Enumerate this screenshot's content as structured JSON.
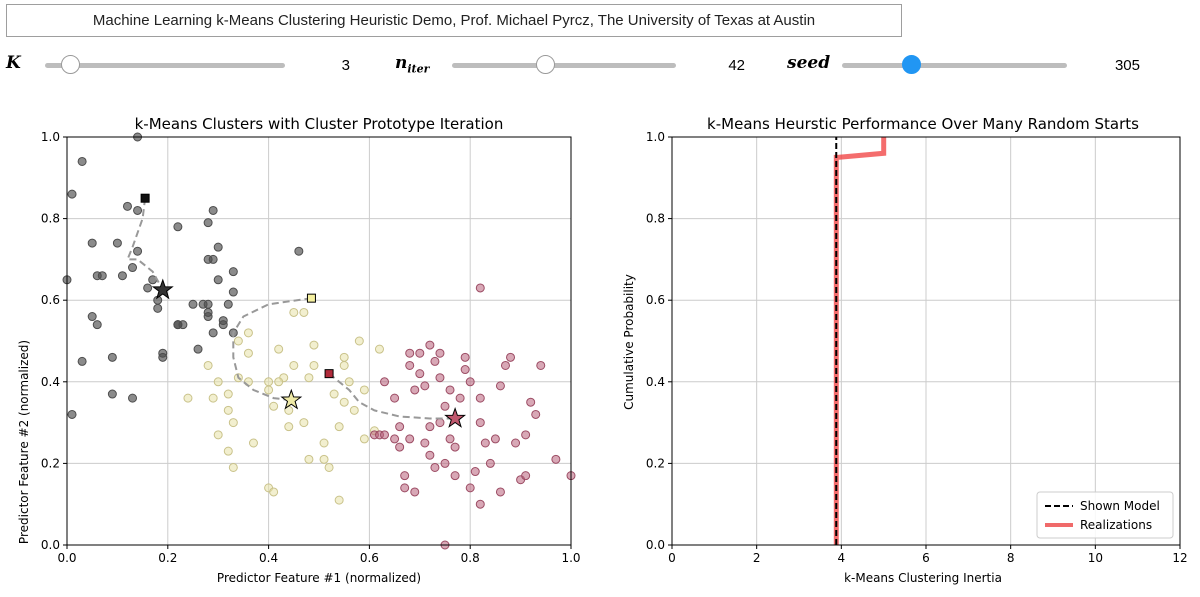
{
  "header": {
    "title": "Machine Learning k-Means Clustering Heuristic Demo, Prof. Michael Pyrcz, The University of Texas at Austin"
  },
  "controls": [
    {
      "label": "K",
      "sub": "",
      "value": "3",
      "min": 1,
      "max": 20,
      "current": 3
    },
    {
      "label": "n",
      "sub": "iter",
      "value": "42",
      "min": 1,
      "max": 100,
      "current": 42
    },
    {
      "label": "seed",
      "sub": "",
      "value": "305",
      "min": 0,
      "max": 1000,
      "current": 305
    }
  ],
  "colors": {
    "cluster_0": "#4d4d4d",
    "cluster_1": "#e8e2a8",
    "cluster_2": "#b8607a",
    "realizations": "#f03c3c",
    "slider_thumb_active": "#2196f3",
    "grid": "#cccccc"
  },
  "chart_data": [
    {
      "type": "scatter",
      "title": "k-Means Clusters with Cluster Prototype Iteration",
      "xlabel": "Predictor Feature #1 (normalized)",
      "ylabel": "Predictor Feature #2 (normalized)",
      "xlim": [
        0,
        1
      ],
      "ylim": [
        0,
        1
      ],
      "xticks": [
        "0.0",
        "0.2",
        "0.4",
        "0.6",
        "0.8",
        "1.0"
      ],
      "yticks": [
        "0.0",
        "0.2",
        "0.4",
        "0.6",
        "0.8",
        "1.0"
      ],
      "grid": true,
      "series": [
        {
          "cluster": 0,
          "points": [
            [
              0.14,
              1.0
            ],
            [
              0.03,
              0.94
            ],
            [
              0.01,
              0.86
            ],
            [
              0.05,
              0.74
            ],
            [
              0.1,
              0.74
            ],
            [
              0.12,
              0.83
            ],
            [
              0.14,
              0.82
            ],
            [
              0.14,
              0.72
            ],
            [
              0.13,
              0.68
            ],
            [
              0.11,
              0.66
            ],
            [
              0.07,
              0.66
            ],
            [
              0.06,
              0.66
            ],
            [
              0.0,
              0.65
            ],
            [
              0.05,
              0.56
            ],
            [
              0.06,
              0.54
            ],
            [
              0.03,
              0.45
            ],
            [
              0.09,
              0.46
            ],
            [
              0.18,
              0.6
            ],
            [
              0.18,
              0.58
            ],
            [
              0.19,
              0.47
            ],
            [
              0.19,
              0.46
            ],
            [
              0.22,
              0.54
            ],
            [
              0.22,
              0.54
            ],
            [
              0.25,
              0.59
            ],
            [
              0.27,
              0.59
            ],
            [
              0.28,
              0.59
            ],
            [
              0.28,
              0.57
            ],
            [
              0.28,
              0.56
            ],
            [
              0.29,
              0.52
            ],
            [
              0.26,
              0.48
            ],
            [
              0.31,
              0.55
            ],
            [
              0.31,
              0.54
            ],
            [
              0.32,
              0.59
            ],
            [
              0.33,
              0.62
            ],
            [
              0.33,
              0.67
            ],
            [
              0.3,
              0.73
            ],
            [
              0.28,
              0.7
            ],
            [
              0.29,
              0.7
            ],
            [
              0.3,
              0.65
            ],
            [
              0.28,
              0.79
            ],
            [
              0.29,
              0.82
            ],
            [
              0.22,
              0.78
            ],
            [
              0.46,
              0.72
            ],
            [
              0.09,
              0.37
            ],
            [
              0.13,
              0.36
            ],
            [
              0.01,
              0.32
            ],
            [
              0.16,
              0.63
            ],
            [
              0.17,
              0.65
            ],
            [
              0.23,
              0.54
            ],
            [
              0.33,
              0.52
            ]
          ]
        },
        {
          "cluster": 1,
          "points": [
            [
              0.28,
              0.44
            ],
            [
              0.29,
              0.36
            ],
            [
              0.24,
              0.36
            ],
            [
              0.3,
              0.27
            ],
            [
              0.32,
              0.23
            ],
            [
              0.32,
              0.37
            ],
            [
              0.33,
              0.3
            ],
            [
              0.33,
              0.19
            ],
            [
              0.36,
              0.4
            ],
            [
              0.37,
              0.25
            ],
            [
              0.36,
              0.52
            ],
            [
              0.36,
              0.47
            ],
            [
              0.34,
              0.5
            ],
            [
              0.34,
              0.41
            ],
            [
              0.3,
              0.4
            ],
            [
              0.32,
              0.33
            ],
            [
              0.4,
              0.4
            ],
            [
              0.4,
              0.38
            ],
            [
              0.4,
              0.14
            ],
            [
              0.41,
              0.13
            ],
            [
              0.41,
              0.34
            ],
            [
              0.42,
              0.48
            ],
            [
              0.43,
              0.41
            ],
            [
              0.44,
              0.29
            ],
            [
              0.45,
              0.44
            ],
            [
              0.45,
              0.57
            ],
            [
              0.47,
              0.57
            ],
            [
              0.47,
              0.3
            ],
            [
              0.48,
              0.21
            ],
            [
              0.48,
              0.41
            ],
            [
              0.49,
              0.44
            ],
            [
              0.49,
              0.49
            ],
            [
              0.51,
              0.21
            ],
            [
              0.51,
              0.25
            ],
            [
              0.52,
              0.19
            ],
            [
              0.53,
              0.37
            ],
            [
              0.54,
              0.29
            ],
            [
              0.54,
              0.11
            ],
            [
              0.55,
              0.35
            ],
            [
              0.55,
              0.44
            ],
            [
              0.55,
              0.46
            ],
            [
              0.56,
              0.4
            ],
            [
              0.57,
              0.33
            ],
            [
              0.58,
              0.5
            ],
            [
              0.59,
              0.26
            ],
            [
              0.59,
              0.38
            ],
            [
              0.61,
              0.28
            ],
            [
              0.62,
              0.48
            ],
            [
              0.42,
              0.4
            ],
            [
              0.44,
              0.33
            ]
          ]
        },
        {
          "cluster": 2,
          "points": [
            [
              0.61,
              0.27
            ],
            [
              0.62,
              0.27
            ],
            [
              0.63,
              0.27
            ],
            [
              0.63,
              0.4
            ],
            [
              0.65,
              0.36
            ],
            [
              0.65,
              0.26
            ],
            [
              0.66,
              0.24
            ],
            [
              0.66,
              0.29
            ],
            [
              0.67,
              0.17
            ],
            [
              0.68,
              0.26
            ],
            [
              0.68,
              0.44
            ],
            [
              0.68,
              0.47
            ],
            [
              0.69,
              0.38
            ],
            [
              0.7,
              0.47
            ],
            [
              0.7,
              0.42
            ],
            [
              0.71,
              0.39
            ],
            [
              0.71,
              0.25
            ],
            [
              0.72,
              0.49
            ],
            [
              0.72,
              0.29
            ],
            [
              0.72,
              0.22
            ],
            [
              0.73,
              0.45
            ],
            [
              0.73,
              0.19
            ],
            [
              0.74,
              0.47
            ],
            [
              0.74,
              0.41
            ],
            [
              0.75,
              0.34
            ],
            [
              0.75,
              0.2
            ],
            [
              0.76,
              0.38
            ],
            [
              0.76,
              0.26
            ],
            [
              0.77,
              0.24
            ],
            [
              0.77,
              0.17
            ],
            [
              0.78,
              0.36
            ],
            [
              0.79,
              0.46
            ],
            [
              0.8,
              0.4
            ],
            [
              0.8,
              0.14
            ],
            [
              0.81,
              0.18
            ],
            [
              0.82,
              0.63
            ],
            [
              0.82,
              0.36
            ],
            [
              0.82,
              0.1
            ],
            [
              0.83,
              0.25
            ],
            [
              0.84,
              0.2
            ],
            [
              0.85,
              0.26
            ],
            [
              0.86,
              0.39
            ],
            [
              0.87,
              0.44
            ],
            [
              0.88,
              0.46
            ],
            [
              0.89,
              0.25
            ],
            [
              0.9,
              0.16
            ],
            [
              0.91,
              0.27
            ],
            [
              0.91,
              0.17
            ],
            [
              0.92,
              0.35
            ],
            [
              0.93,
              0.32
            ],
            [
              0.94,
              0.44
            ],
            [
              0.97,
              0.21
            ],
            [
              1.0,
              0.17
            ],
            [
              0.67,
              0.14
            ],
            [
              0.69,
              0.13
            ],
            [
              0.75,
              0.0
            ],
            [
              0.79,
              0.43
            ],
            [
              0.82,
              0.3
            ],
            [
              0.86,
              0.13
            ],
            [
              0.74,
              0.3
            ]
          ]
        }
      ],
      "prototype_paths": [
        {
          "cluster": 0,
          "start": [
            0.155,
            0.85
          ],
          "end": [
            0.19,
            0.625
          ],
          "path": [
            [
              0.155,
              0.85
            ],
            [
              0.15,
              0.8
            ],
            [
              0.13,
              0.73
            ],
            [
              0.12,
              0.7
            ],
            [
              0.14,
              0.7
            ],
            [
              0.17,
              0.67
            ],
            [
              0.19,
              0.625
            ]
          ]
        },
        {
          "cluster": 1,
          "start": [
            0.485,
            0.605
          ],
          "end": [
            0.445,
            0.355
          ],
          "path": [
            [
              0.485,
              0.605
            ],
            [
              0.4,
              0.59
            ],
            [
              0.35,
              0.56
            ],
            [
              0.33,
              0.52
            ],
            [
              0.33,
              0.46
            ],
            [
              0.34,
              0.41
            ],
            [
              0.37,
              0.38
            ],
            [
              0.41,
              0.36
            ],
            [
              0.445,
              0.355
            ]
          ]
        },
        {
          "cluster": 2,
          "start": [
            0.52,
            0.42
          ],
          "end": [
            0.77,
            0.31
          ],
          "path": [
            [
              0.52,
              0.42
            ],
            [
              0.56,
              0.38
            ],
            [
              0.58,
              0.35
            ],
            [
              0.61,
              0.33
            ],
            [
              0.66,
              0.315
            ],
            [
              0.72,
              0.31
            ],
            [
              0.77,
              0.31
            ]
          ]
        }
      ]
    },
    {
      "type": "line",
      "title": "k-Means Heurstic Performance Over Many Random Starts",
      "xlabel": "k-Means Clustering Inertia",
      "ylabel": "Cumulative Probability",
      "xlim": [
        0,
        12
      ],
      "ylim": [
        0,
        1
      ],
      "xticks": [
        "0",
        "2",
        "4",
        "6",
        "8",
        "10",
        "12"
      ],
      "yticks": [
        "0.0",
        "0.2",
        "0.4",
        "0.6",
        "0.8",
        "1.0"
      ],
      "grid": true,
      "legend": "bottom-right",
      "series": [
        {
          "name": "Shown Model",
          "style": "dashed",
          "color": "#000000",
          "x": [
            3.88,
            3.88
          ],
          "y": [
            0,
            1.0
          ]
        },
        {
          "name": "Realizations",
          "style": "step",
          "color": "#f03c3c",
          "x": [
            3.88,
            3.88,
            3.92,
            5.0,
            5.0
          ],
          "y": [
            0,
            0.95,
            0.95,
            0.96,
            1.0
          ]
        }
      ]
    }
  ]
}
